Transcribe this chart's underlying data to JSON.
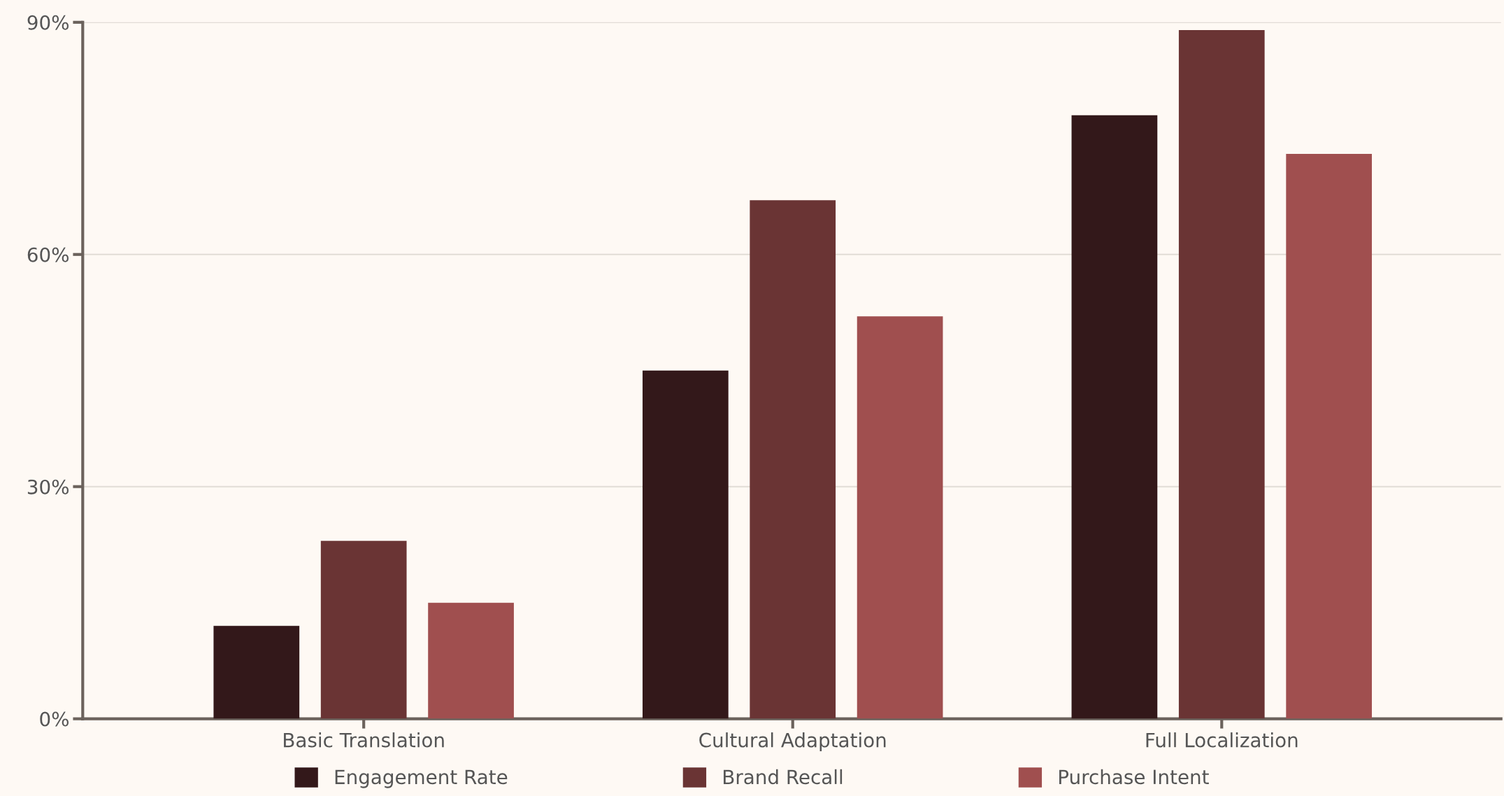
{
  "chart_data": {
    "type": "bar",
    "categories": [
      "Basic Translation",
      "Cultural Adaptation",
      "Full Localization"
    ],
    "series": [
      {
        "name": "Engagement Rate",
        "color": "#33181a",
        "values": [
          12,
          45,
          78
        ]
      },
      {
        "name": "Brand Recall",
        "color": "#6a3434",
        "values": [
          23,
          67,
          89
        ]
      },
      {
        "name": "Purchase Intent",
        "color": "#a04f4f",
        "values": [
          15,
          52,
          73
        ]
      }
    ],
    "ylim": [
      0,
      90
    ],
    "yticks": [
      {
        "value": 0,
        "label": "0%"
      },
      {
        "value": 30,
        "label": "30%"
      },
      {
        "value": 60,
        "label": "60%"
      },
      {
        "value": 90,
        "label": "90%"
      }
    ],
    "grid": "y",
    "legend": "bottom"
  }
}
